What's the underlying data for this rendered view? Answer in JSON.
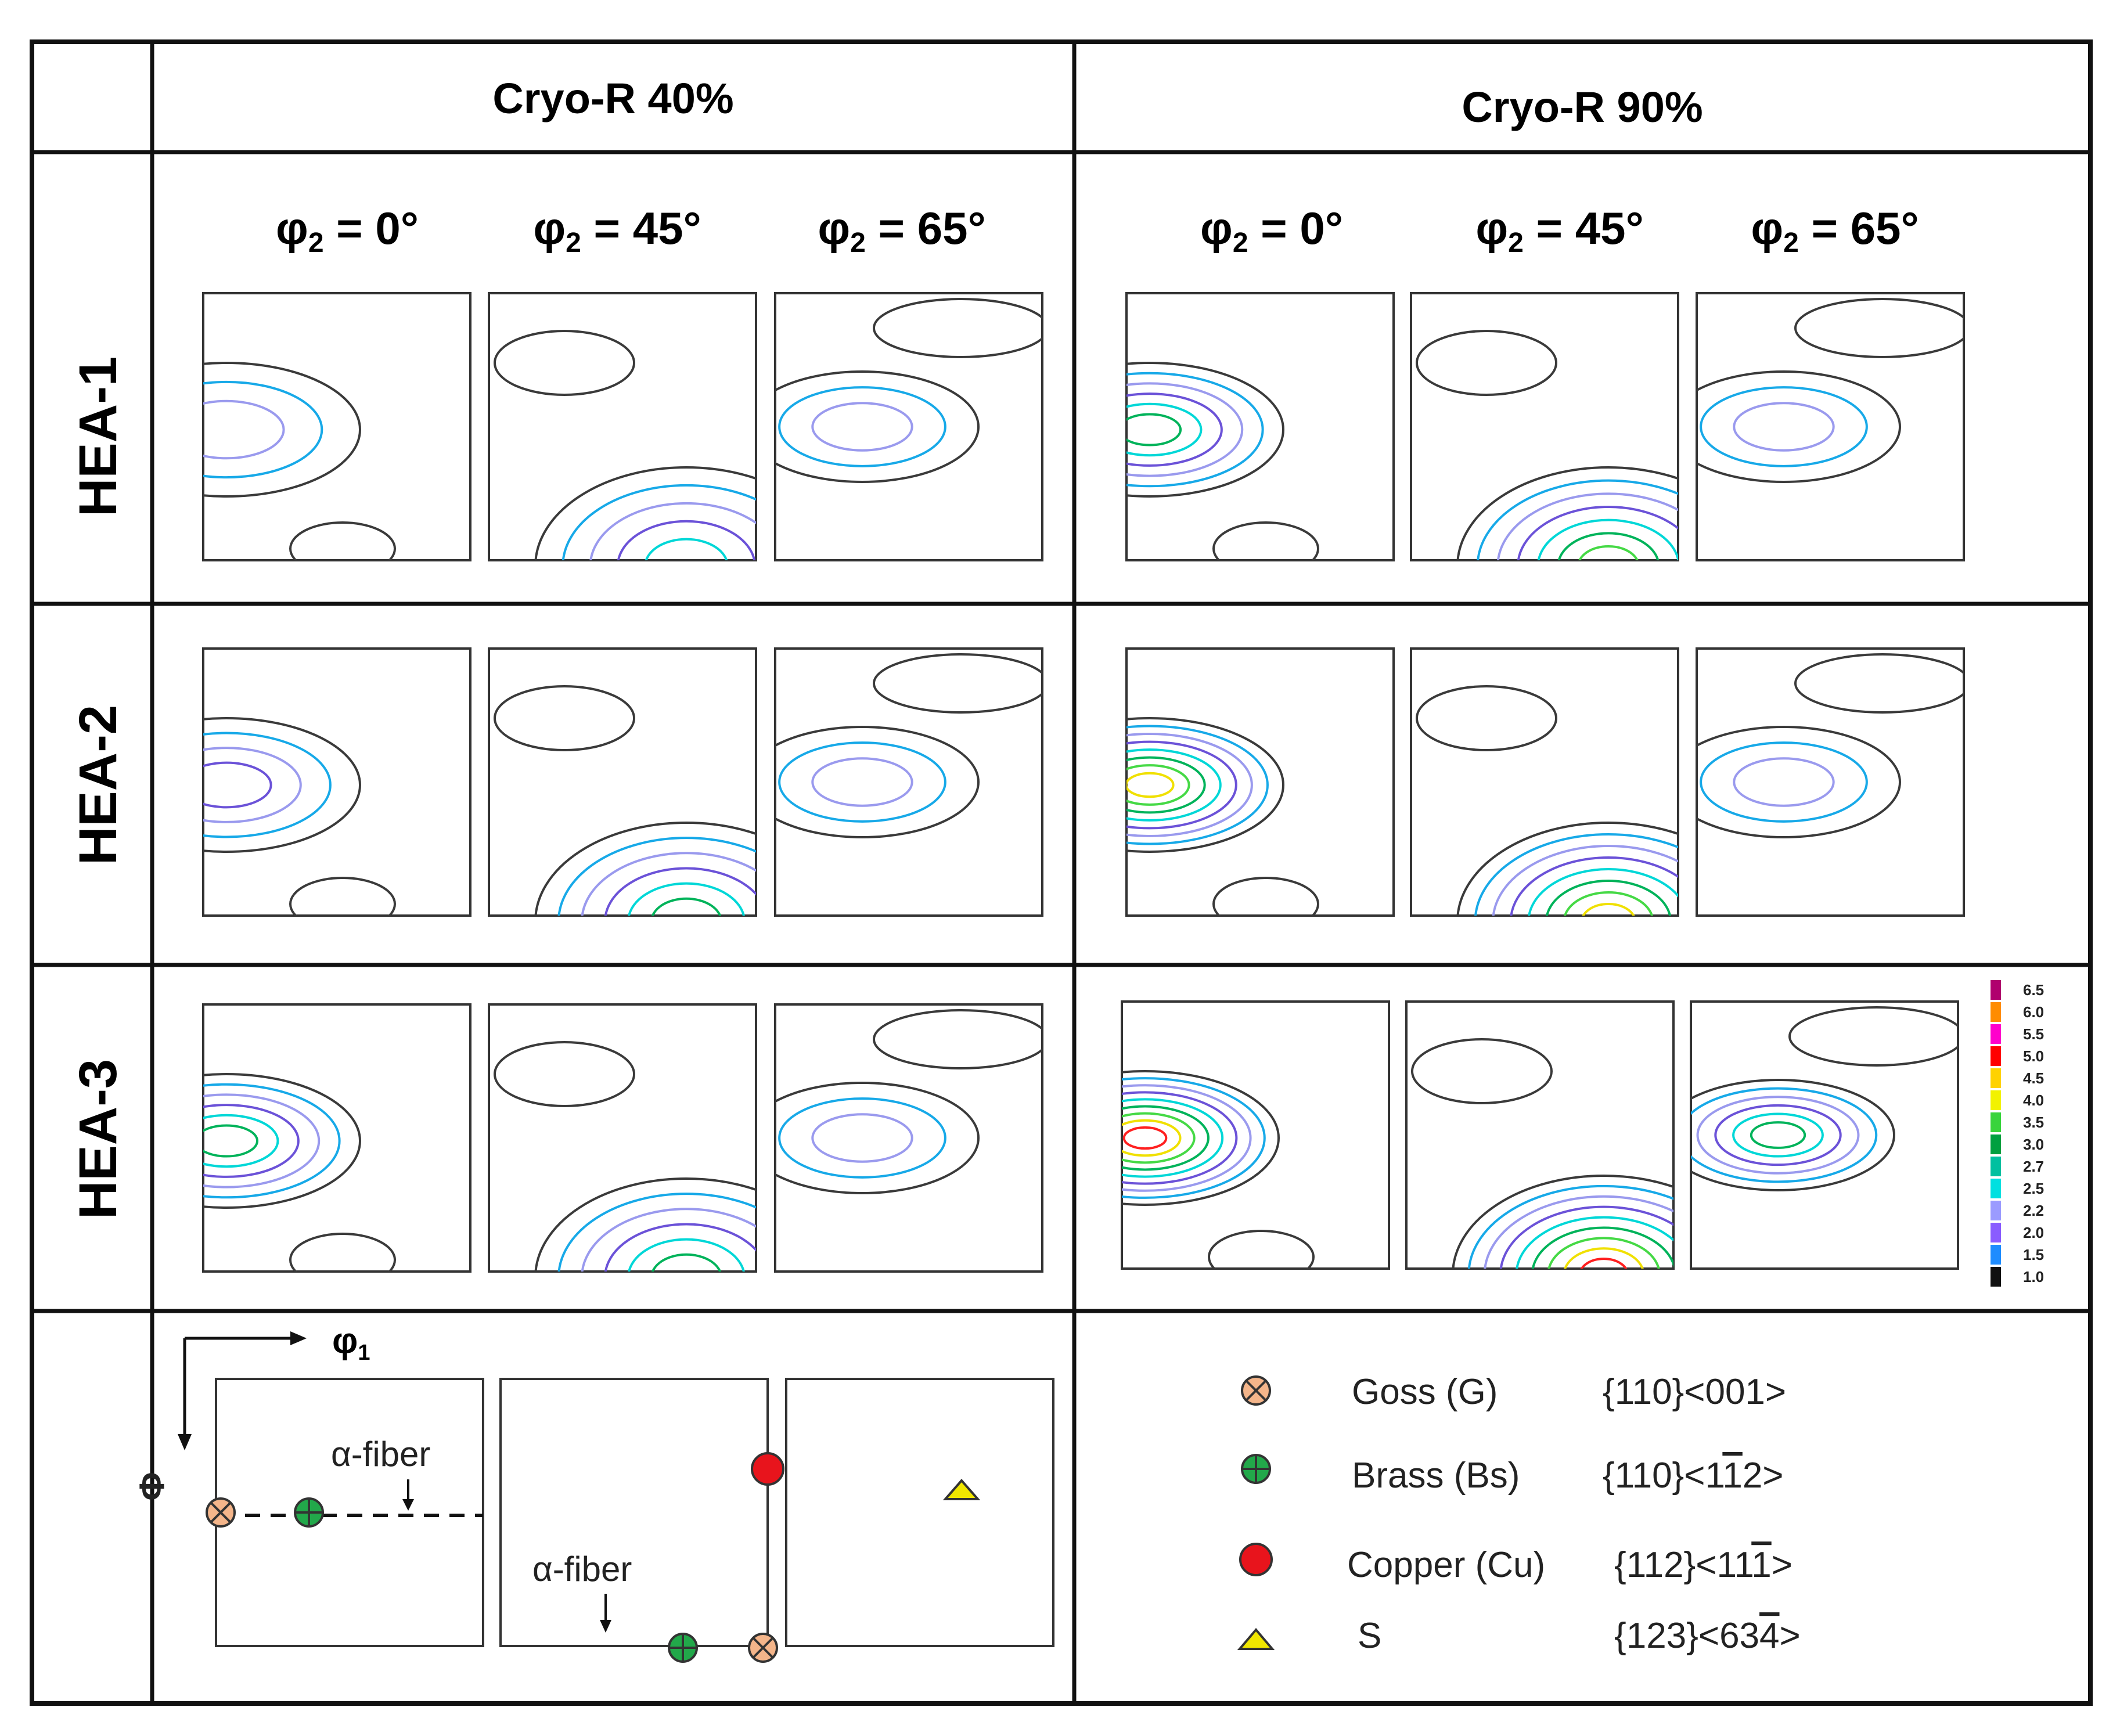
{
  "headers": {
    "col_a": "Cryo-R 40%",
    "col_b": "Cryo-R 90%"
  },
  "phi2_labels": [
    {
      "sym": "φ",
      "sub": "2",
      "rest": " = 0°"
    },
    {
      "sym": "φ",
      "sub": "2",
      "rest": " = 45°"
    },
    {
      "sym": "φ",
      "sub": "2",
      "rest": " = 65°"
    }
  ],
  "rows": [
    "HEA-1",
    "HEA-2",
    "HEA-3"
  ],
  "colorbar": {
    "values": [
      "6.5",
      "6.0",
      "5.5",
      "5.0",
      "4.5",
      "4.0",
      "3.5",
      "3.0",
      "2.7",
      "2.5",
      "2.2",
      "2.0",
      "1.5",
      "1.0"
    ],
    "colors": [
      "#b0006e",
      "#ff8c00",
      "#ff00cc",
      "#ff0000",
      "#ffd200",
      "#f2f200",
      "#39d43c",
      "#00a040",
      "#00c0a0",
      "#00e0e0",
      "#9b9bff",
      "#8a5cff",
      "#1e8cff",
      "#111111"
    ]
  },
  "contour_colors": [
    "#3a3a3a",
    "#17a9e8",
    "#9a9aee",
    "#6b52d8",
    "#00d7d7",
    "#00b35a",
    "#45d945",
    "#f0e000",
    "#ff2020"
  ],
  "key": {
    "axis_x": {
      "sym": "φ",
      "sub": "1"
    },
    "axis_y": "Φ",
    "alpha_fiber_1": "α-fiber",
    "alpha_fiber_2": "α-fiber"
  },
  "legend": [
    {
      "name": "Goss (G)",
      "index": "{110}<001>",
      "marker": "goss"
    },
    {
      "name": "Brass (Bs)",
      "index": "{110}<1",
      "bar": "1",
      "index_end": "2>",
      "marker": "brass"
    },
    {
      "name": "Copper (Cu)",
      "index": "{112}<11",
      "bar": "1",
      "index_end": ">",
      "marker": "copper"
    },
    {
      "name": "S",
      "index": "{123}<63",
      "bar": "4",
      "index_end": ">",
      "marker": "s"
    }
  ]
}
